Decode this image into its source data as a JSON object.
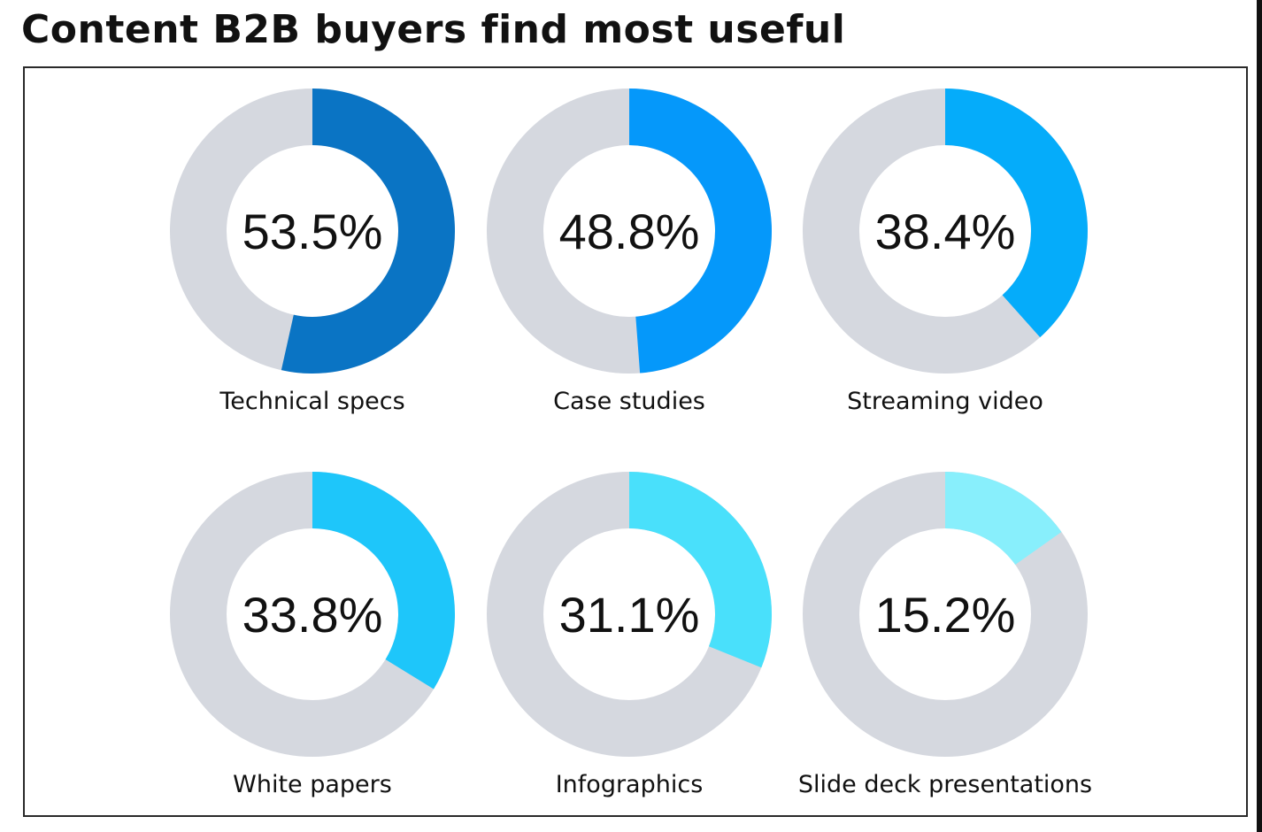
{
  "title": "Content B2B buyers find most useful",
  "chart_data": {
    "type": "pie",
    "variant": "donut-grid",
    "title": "Content B2B buyers find most useful",
    "unit": "%",
    "track_color": "#d5d8df",
    "items": [
      {
        "label": "Technical specs",
        "value": 53.5,
        "value_label": "53.5%",
        "color": "#0a74c4"
      },
      {
        "label": "Case studies",
        "value": 48.8,
        "value_label": "48.8%",
        "color": "#0598fa"
      },
      {
        "label": "Streaming video",
        "value": 38.4,
        "value_label": "38.4%",
        "color": "#05acfa"
      },
      {
        "label": "White papers",
        "value": 33.8,
        "value_label": "33.8%",
        "color": "#1ec6fa"
      },
      {
        "label": "Infographics",
        "value": 31.1,
        "value_label": "31.1%",
        "color": "#49e0fb"
      },
      {
        "label": "Slide deck presentations",
        "value": 15.2,
        "value_label": "15.2%",
        "color": "#88effc"
      }
    ]
  }
}
